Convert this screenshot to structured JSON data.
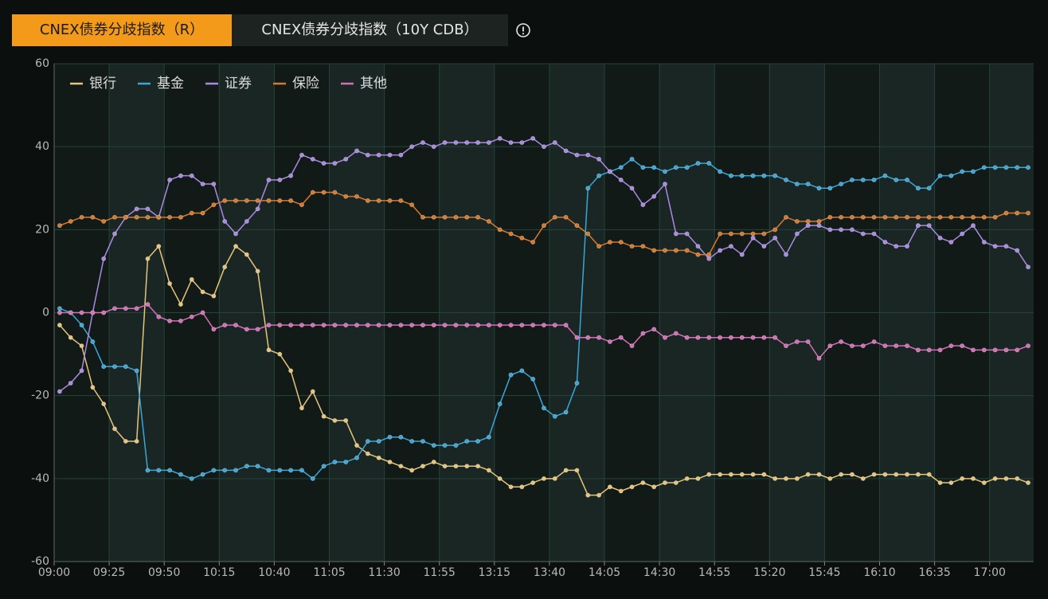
{
  "tabs": [
    "CNEX债券分歧指数（R）",
    "CNEX债券分歧指数（10Y CDB）"
  ],
  "chart_data": {
    "type": "line",
    "categories": [
      "09:00",
      null,
      null,
      null,
      null,
      "09:25",
      null,
      null,
      null,
      null,
      "09:50",
      null,
      null,
      null,
      null,
      "10:15",
      null,
      null,
      null,
      null,
      "10:40",
      null,
      null,
      null,
      null,
      "11:05",
      null,
      null,
      null,
      null,
      "11:30",
      null,
      null,
      null,
      null,
      "11:55",
      null,
      null,
      null,
      null,
      "13:15",
      null,
      null,
      null,
      null,
      "13:40",
      null,
      null,
      null,
      null,
      "14:05",
      null,
      null,
      null,
      null,
      "14:30",
      null,
      null,
      null,
      null,
      "14:55",
      null,
      null,
      null,
      null,
      "15:20",
      null,
      null,
      null,
      null,
      "15:45",
      null,
      null,
      null,
      null,
      "16:10",
      null,
      null,
      null,
      null,
      "16:35",
      null,
      null,
      null,
      null,
      "17:00",
      null,
      null,
      null
    ],
    "series": [
      {
        "name": "银行",
        "color": "#e6c57a",
        "values": [
          -3,
          -6,
          -8,
          -18,
          -22,
          -28,
          -31,
          -31,
          13,
          16,
          7,
          2,
          8,
          5,
          4,
          11,
          16,
          14,
          10,
          -9,
          -10,
          -14,
          -23,
          -19,
          -25,
          -26,
          -26,
          -32,
          -34,
          -35,
          -36,
          -37,
          -38,
          -37,
          -36,
          -37,
          -37,
          -37,
          -37,
          -38,
          -40,
          -42,
          -42,
          -41,
          -40,
          -40,
          -38,
          -38,
          -44,
          -44,
          -42,
          -43,
          -42,
          -41,
          -42,
          -41,
          -41,
          -40,
          -40,
          -39,
          -39,
          -39,
          -39,
          -39,
          -39,
          -40,
          -40,
          -40,
          -39,
          -39,
          -40,
          -39,
          -39,
          -40,
          -39,
          -39,
          -39,
          -39,
          -39,
          -39,
          -41,
          -41,
          -40,
          -40,
          -41,
          -40,
          -40,
          -40,
          -41
        ]
      },
      {
        "name": "基金",
        "color": "#3aa6d8",
        "values": [
          1,
          0,
          -3,
          -7,
          -13,
          -13,
          -13,
          -14,
          -38,
          -38,
          -38,
          -39,
          -40,
          -39,
          -38,
          -38,
          -38,
          -37,
          -37,
          -38,
          -38,
          -38,
          -38,
          -40,
          -37,
          -36,
          -36,
          -35,
          -31,
          -31,
          -30,
          -30,
          -31,
          -31,
          -32,
          -32,
          -32,
          -31,
          -31,
          -30,
          -22,
          -15,
          -14,
          -16,
          -23,
          -25,
          -24,
          -17,
          30,
          33,
          34,
          35,
          37,
          35,
          35,
          34,
          35,
          35,
          36,
          36,
          34,
          33,
          33,
          33,
          33,
          33,
          32,
          31,
          31,
          30,
          30,
          31,
          32,
          32,
          32,
          33,
          32,
          32,
          30,
          30,
          33,
          33,
          34,
          34,
          35,
          35,
          35,
          35,
          35
        ]
      },
      {
        "name": "证券",
        "color": "#a98ae0",
        "values": [
          -19,
          -17,
          -14,
          0,
          13,
          19,
          23,
          25,
          25,
          23,
          32,
          33,
          33,
          31,
          31,
          22,
          19,
          22,
          25,
          32,
          32,
          33,
          38,
          37,
          36,
          36,
          37,
          39,
          38,
          38,
          38,
          38,
          40,
          41,
          40,
          41,
          41,
          41,
          41,
          41,
          42,
          41,
          41,
          42,
          40,
          41,
          39,
          38,
          38,
          37,
          34,
          32,
          30,
          26,
          28,
          31,
          19,
          19,
          16,
          13,
          15,
          16,
          14,
          18,
          16,
          18,
          14,
          19,
          21,
          21,
          20,
          20,
          20,
          19,
          19,
          17,
          16,
          16,
          21,
          21,
          18,
          17,
          19,
          21,
          17,
          16,
          16,
          15,
          11
        ]
      },
      {
        "name": "保险",
        "color": "#d9782a",
        "values": [
          21,
          22,
          23,
          23,
          22,
          23,
          23,
          23,
          23,
          23,
          23,
          23,
          24,
          24,
          26,
          27,
          27,
          27,
          27,
          27,
          27,
          27,
          26,
          29,
          29,
          29,
          28,
          28,
          27,
          27,
          27,
          27,
          26,
          23,
          23,
          23,
          23,
          23,
          23,
          22,
          20,
          19,
          18,
          17,
          21,
          23,
          23,
          21,
          19,
          16,
          17,
          17,
          16,
          16,
          15,
          15,
          15,
          15,
          14,
          14,
          19,
          19,
          19,
          19,
          19,
          20,
          23,
          22,
          22,
          22,
          23,
          23,
          23,
          23,
          23,
          23,
          23,
          23,
          23,
          23,
          23,
          23,
          23,
          23,
          23,
          23,
          24,
          24,
          24
        ]
      },
      {
        "name": "其他",
        "color": "#d56eb6",
        "values": [
          0,
          0,
          0,
          0,
          0,
          1,
          1,
          1,
          2,
          -1,
          -2,
          -2,
          -1,
          0,
          -4,
          -3,
          -3,
          -4,
          -4,
          -3,
          -3,
          -3,
          -3,
          -3,
          -3,
          -3,
          -3,
          -3,
          -3,
          -3,
          -3,
          -3,
          -3,
          -3,
          -3,
          -3,
          -3,
          -3,
          -3,
          -3,
          -3,
          -3,
          -3,
          -3,
          -3,
          -3,
          -3,
          -6,
          -6,
          -6,
          -7,
          -6,
          -8,
          -5,
          -4,
          -6,
          -5,
          -6,
          -6,
          -6,
          -6,
          -6,
          -6,
          -6,
          -6,
          -6,
          -8,
          -7,
          -7,
          -11,
          -8,
          -7,
          -8,
          -8,
          -7,
          -8,
          -8,
          -8,
          -9,
          -9,
          -9,
          -8,
          -8,
          -9,
          -9,
          -9,
          -9,
          -9,
          -8
        ]
      }
    ],
    "ylim": [
      -60,
      60
    ],
    "yticks": [
      -60,
      -40,
      -20,
      0,
      20,
      40,
      60
    ],
    "grid": true,
    "legend": "top-left"
  }
}
